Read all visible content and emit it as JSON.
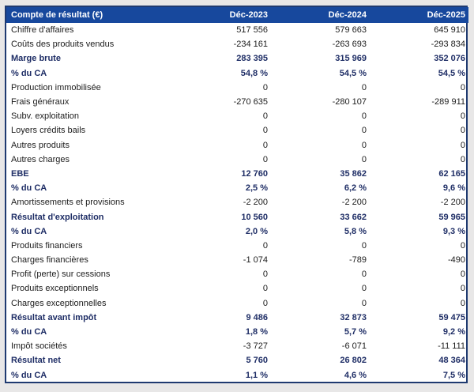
{
  "colors": {
    "page_bg": "#E8E7E7",
    "header_bg": "#17489D",
    "border": "#1F3A70",
    "bold_text": "#1F2E66",
    "normal_text": "#1C1C1C"
  },
  "table": {
    "title": "Compte de résultat (€)",
    "columns": [
      "Déc-2023",
      "Déc-2024",
      "Déc-2025"
    ],
    "rows": [
      {
        "label": "Chiffre d'affaires",
        "values": [
          "517 556",
          "579 663",
          "645 910"
        ],
        "style": "normal"
      },
      {
        "label": "Coûts des produits vendus",
        "values": [
          "-234 161",
          "-263 693",
          "-293 834"
        ],
        "style": "normal"
      },
      {
        "label": "Marge brute",
        "values": [
          "283 395",
          "315 969",
          "352 076"
        ],
        "style": "bold"
      },
      {
        "label": "% du CA",
        "values": [
          "54,8 %",
          "54,5 %",
          "54,5 %"
        ],
        "style": "bold"
      },
      {
        "label": "Production immobilisée",
        "values": [
          "0",
          "0",
          "0"
        ],
        "style": "normal"
      },
      {
        "label": "Frais généraux",
        "values": [
          "-270 635",
          "-280 107",
          "-289 911"
        ],
        "style": "normal"
      },
      {
        "label": "Subv. exploitation",
        "values": [
          "0",
          "0",
          "0"
        ],
        "style": "normal"
      },
      {
        "label": "Loyers crédits bails",
        "values": [
          "0",
          "0",
          "0"
        ],
        "style": "normal"
      },
      {
        "label": "Autres produits",
        "values": [
          "0",
          "0",
          "0"
        ],
        "style": "normal"
      },
      {
        "label": "Autres charges",
        "values": [
          "0",
          "0",
          "0"
        ],
        "style": "normal"
      },
      {
        "label": "EBE",
        "values": [
          "12 760",
          "35 862",
          "62 165"
        ],
        "style": "bold"
      },
      {
        "label": "% du CA",
        "values": [
          "2,5 %",
          "6,2 %",
          "9,6 %"
        ],
        "style": "bold"
      },
      {
        "label": "Amortissements et provisions",
        "values": [
          "-2 200",
          "-2 200",
          "-2 200"
        ],
        "style": "normal"
      },
      {
        "label": "Résultat d'exploitation",
        "values": [
          "10 560",
          "33 662",
          "59 965"
        ],
        "style": "bold"
      },
      {
        "label": "% du CA",
        "values": [
          "2,0 %",
          "5,8 %",
          "9,3 %"
        ],
        "style": "bold"
      },
      {
        "label": "Produits financiers",
        "values": [
          "0",
          "0",
          "0"
        ],
        "style": "normal"
      },
      {
        "label": "Charges financières",
        "values": [
          "-1 074",
          "-789",
          "-490"
        ],
        "style": "normal"
      },
      {
        "label": "Profit (perte) sur cessions",
        "values": [
          "0",
          "0",
          "0"
        ],
        "style": "normal"
      },
      {
        "label": "Produits exceptionnels",
        "values": [
          "0",
          "0",
          "0"
        ],
        "style": "normal"
      },
      {
        "label": "Charges exceptionnelles",
        "values": [
          "0",
          "0",
          "0"
        ],
        "style": "normal"
      },
      {
        "label": "Résultat avant impôt",
        "values": [
          "9 486",
          "32 873",
          "59 475"
        ],
        "style": "bold"
      },
      {
        "label": "% du CA",
        "values": [
          "1,8 %",
          "5,7 %",
          "9,2 %"
        ],
        "style": "bold"
      },
      {
        "label": "Impôt sociétés",
        "values": [
          "-3 727",
          "-6 071",
          "-11 111"
        ],
        "style": "normal"
      },
      {
        "label": "Résultat net",
        "values": [
          "5 760",
          "26 802",
          "48 364"
        ],
        "style": "bold"
      },
      {
        "label": "% du CA",
        "values": [
          "1,1 %",
          "4,6 %",
          "7,5 %"
        ],
        "style": "bold"
      }
    ]
  }
}
